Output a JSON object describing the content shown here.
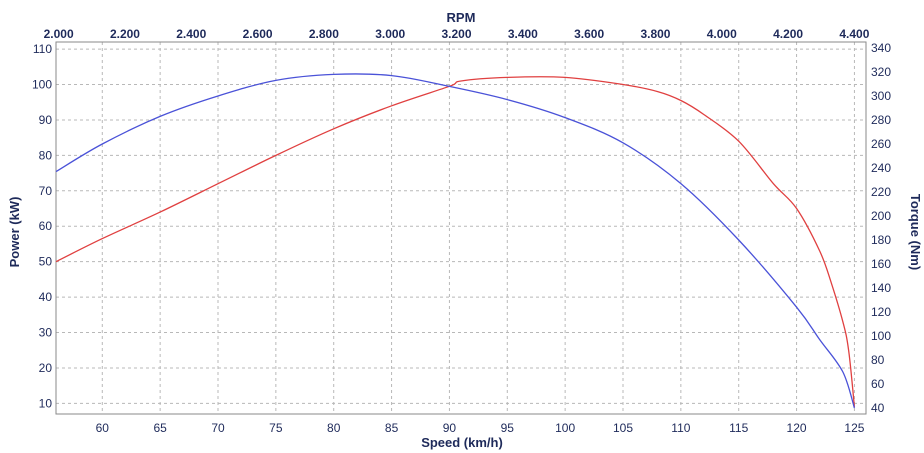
{
  "chart_data": {
    "type": "line",
    "title": "",
    "grid": true,
    "x_bottom": {
      "label": "Speed (km/h)",
      "range": [
        56,
        126
      ],
      "ticks": [
        "60",
        "65",
        "70",
        "75",
        "80",
        "85",
        "90",
        "95",
        "100",
        "105",
        "110",
        "115",
        "120",
        "125"
      ]
    },
    "x_top": {
      "label": "RPM",
      "range": [
        1992,
        4435
      ],
      "ticks": [
        "2.000",
        "2.200",
        "2.400",
        "2.600",
        "2.800",
        "3.000",
        "3.200",
        "3.400",
        "3.600",
        "3.800",
        "4.000",
        "4.200",
        "4.400"
      ]
    },
    "y_left": {
      "label": "Power (kW)",
      "range": [
        7,
        112
      ],
      "ticks": [
        "10",
        "20",
        "30",
        "40",
        "50",
        "60",
        "70",
        "80",
        "90",
        "100",
        "110"
      ]
    },
    "y_right": {
      "label": "Torque (Nm)",
      "range": [
        35,
        345
      ],
      "ticks": [
        "40",
        "60",
        "80",
        "100",
        "120",
        "140",
        "160",
        "180",
        "200",
        "220",
        "240",
        "260",
        "280",
        "300",
        "320",
        "340"
      ]
    },
    "series": [
      {
        "color": "#e04040",
        "axis": "left",
        "x_speed": [
          56,
          60,
          65,
          70,
          75,
          80,
          85,
          90,
          91,
          95,
          100,
          105,
          108,
          110,
          112,
          115,
          118,
          120,
          122,
          123,
          124,
          124.5,
          125
        ],
        "values": [
          50,
          56.5,
          64,
          72,
          80,
          87.5,
          94,
          99.5,
          101,
          102,
          102,
          100,
          98,
          95.5,
          91.5,
          84,
          72,
          65,
          53,
          44,
          33,
          25,
          9
        ]
      },
      {
        "color": "#4a52d8",
        "axis": "right",
        "x_speed": [
          56,
          60,
          65,
          70,
          75,
          80,
          85,
          90,
          95,
          100,
          105,
          110,
          115,
          120,
          122,
          124,
          125
        ],
        "values": [
          237,
          260,
          283,
          300,
          313,
          318,
          317,
          308,
          297,
          282,
          261,
          227,
          180,
          124,
          97,
          70,
          40
        ]
      }
    ]
  }
}
